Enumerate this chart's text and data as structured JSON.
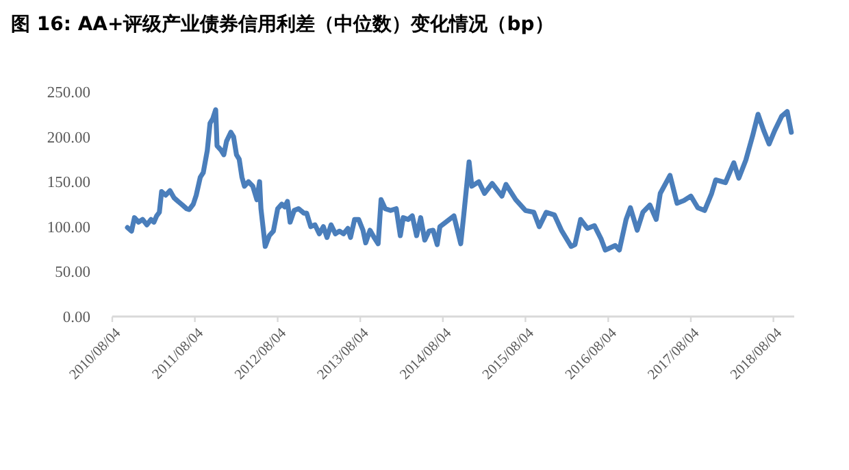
{
  "chart_data": {
    "type": "line",
    "title": "图 16:  AA+评级产业债券信用利差（中位数）变化情况（bp）",
    "x": [
      "2010-10-10",
      "2010-10-28",
      "2010-11-10",
      "2010-11-28",
      "2010-12-16",
      "2011-01-04",
      "2011-01-22",
      "2011-02-04",
      "2011-02-16",
      "2011-02-28",
      "2011-03-10",
      "2011-03-28",
      "2011-04-16",
      "2011-05-04",
      "2011-05-22",
      "2011-06-10",
      "2011-06-28",
      "2011-07-10",
      "2011-07-28",
      "2011-08-10",
      "2011-08-28",
      "2011-09-10",
      "2011-09-28",
      "2011-10-10",
      "2011-10-22",
      "2011-11-04",
      "2011-11-10",
      "2011-11-28",
      "2011-12-10",
      "2011-12-22",
      "2012-01-10",
      "2012-01-22",
      "2012-02-04",
      "2012-02-16",
      "2012-02-28",
      "2012-03-10",
      "2012-03-28",
      "2012-04-16",
      "2012-05-04",
      "2012-05-16",
      "2012-05-22",
      "2012-06-10",
      "2012-06-28",
      "2012-07-16",
      "2012-08-04",
      "2012-08-22",
      "2012-09-04",
      "2012-09-16",
      "2012-09-28",
      "2012-10-16",
      "2012-11-04",
      "2012-11-28",
      "2012-12-10",
      "2012-12-28",
      "2013-01-16",
      "2013-02-04",
      "2013-02-22",
      "2013-03-10",
      "2013-03-28",
      "2013-04-16",
      "2013-05-04",
      "2013-05-22",
      "2013-06-10",
      "2013-06-22",
      "2013-07-10",
      "2013-07-28",
      "2013-08-16",
      "2013-08-28",
      "2013-09-16",
      "2013-10-04",
      "2013-10-22",
      "2013-11-04",
      "2013-11-22",
      "2013-12-16",
      "2014-01-10",
      "2014-01-28",
      "2014-02-10",
      "2014-03-04",
      "2014-03-22",
      "2014-04-10",
      "2014-04-28",
      "2014-05-16",
      "2014-06-04",
      "2014-06-22",
      "2014-07-10",
      "2014-07-22",
      "2014-09-22",
      "2014-10-22",
      "2014-11-04",
      "2014-11-28",
      "2014-12-10",
      "2015-01-10",
      "2015-02-04",
      "2015-03-10",
      "2015-04-22",
      "2015-05-10",
      "2015-06-22",
      "2015-08-04",
      "2015-09-10",
      "2015-10-04",
      "2015-11-04",
      "2015-12-10",
      "2016-01-10",
      "2016-02-22",
      "2016-03-10",
      "2016-04-04",
      "2016-05-04",
      "2016-06-04",
      "2016-07-04",
      "2016-07-22",
      "2016-09-04",
      "2016-09-22",
      "2016-10-22",
      "2016-11-10",
      "2016-12-10",
      "2017-01-04",
      "2017-02-04",
      "2017-03-04",
      "2017-03-22",
      "2017-05-04",
      "2017-06-04",
      "2017-07-04",
      "2017-08-04",
      "2017-09-04",
      "2017-10-04",
      "2017-11-04",
      "2017-11-22",
      "2018-01-04",
      "2018-02-10",
      "2018-03-04",
      "2018-04-04",
      "2018-05-04",
      "2018-05-28",
      "2018-06-22",
      "2018-07-16",
      "2018-08-10",
      "2018-09-10",
      "2018-10-04",
      "2018-10-22"
    ],
    "series": [
      {
        "color": "#4a7ebb",
        "values": [
          99,
          95,
          110,
          105,
          108,
          102,
          108,
          105,
          112,
          116,
          139,
          135,
          140,
          132,
          128,
          124,
          120,
          119,
          125,
          135,
          155,
          160,
          185,
          215,
          220,
          230,
          190,
          185,
          180,
          195,
          205,
          200,
          180,
          175,
          155,
          145,
          150,
          145,
          130,
          150,
          120,
          78,
          90,
          95,
          120,
          125,
          122,
          128,
          105,
          118,
          120,
          115,
          115,
          100,
          102,
          92,
          100,
          88,
          102,
          92,
          95,
          92,
          98,
          88,
          108,
          108,
          96,
          82,
          96,
          88,
          81,
          130,
          120,
          118,
          120,
          90,
          110,
          108,
          112,
          90,
          110,
          85,
          95,
          96,
          80,
          100,
          112,
          81,
          112,
          172,
          145,
          150,
          137,
          148,
          134,
          147,
          130,
          118,
          116,
          100,
          116,
          113,
          96,
          78,
          80,
          108,
          98,
          101,
          86,
          74,
          79,
          74,
          108,
          121,
          96,
          116,
          124,
          108,
          137,
          157,
          126,
          129,
          134,
          121,
          118,
          137,
          152,
          149,
          171,
          154,
          174,
          201,
          225,
          207,
          192,
          207,
          223,
          228,
          205
        ]
      }
    ],
    "xlim": [
      "2010-08-04",
      "2018-11-04"
    ],
    "xticks": [
      {
        "value": "2010-08-04",
        "label": "2010/08/04"
      },
      {
        "value": "2011-08-04",
        "label": "2011/08/04"
      },
      {
        "value": "2012-08-04",
        "label": "2012/08/04"
      },
      {
        "value": "2013-08-04",
        "label": "2013/08/04"
      },
      {
        "value": "2014-08-04",
        "label": "2014/08/04"
      },
      {
        "value": "2015-08-04",
        "label": "2015/08/04"
      },
      {
        "value": "2016-08-04",
        "label": "2016/08/04"
      },
      {
        "value": "2017-08-04",
        "label": "2017/08/04"
      },
      {
        "value": "2018-08-04",
        "label": "2018/08/04"
      }
    ],
    "ylim": [
      0,
      250
    ],
    "yticks": [
      {
        "value": 0,
        "label": "0.00"
      },
      {
        "value": 50,
        "label": "50.00"
      },
      {
        "value": 100,
        "label": "100.00"
      },
      {
        "value": 150,
        "label": "150.00"
      },
      {
        "value": 200,
        "label": "200.00"
      },
      {
        "value": 250,
        "label": "250.00"
      }
    ],
    "grid": false,
    "marker": "none",
    "line_style": "solid"
  }
}
